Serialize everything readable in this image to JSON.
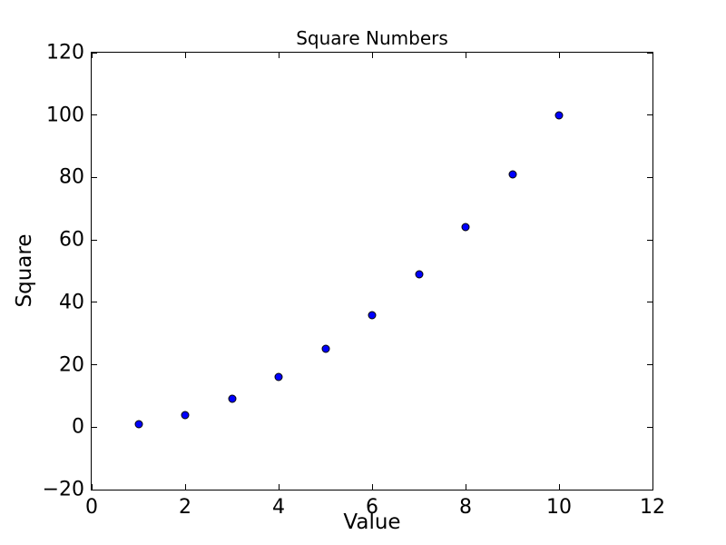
{
  "chart_data": {
    "type": "scatter",
    "title": "Square Numbers",
    "xlabel": "Value",
    "ylabel": "Square",
    "x": [
      1,
      2,
      3,
      4,
      5,
      6,
      7,
      8,
      9,
      10
    ],
    "y": [
      1,
      4,
      9,
      16,
      25,
      36,
      49,
      64,
      81,
      100
    ],
    "xlim": [
      0,
      12
    ],
    "ylim": [
      -20,
      120
    ],
    "xticks": [
      0,
      2,
      4,
      6,
      8,
      10,
      12
    ],
    "xtick_labels": [
      "0",
      "2",
      "4",
      "6",
      "8",
      "10",
      "12"
    ],
    "yticks": [
      -20,
      0,
      20,
      40,
      60,
      80,
      100,
      120
    ],
    "ytick_labels": [
      "−20",
      "0",
      "20",
      "40",
      "60",
      "80",
      "100",
      "120"
    ],
    "grid": false,
    "legend": null,
    "ticks_all_sides": true,
    "marker_color": "#0000ff",
    "marker_edge_color": "#000000",
    "axis_color": "#000000",
    "background_color": "#ffffff"
  }
}
